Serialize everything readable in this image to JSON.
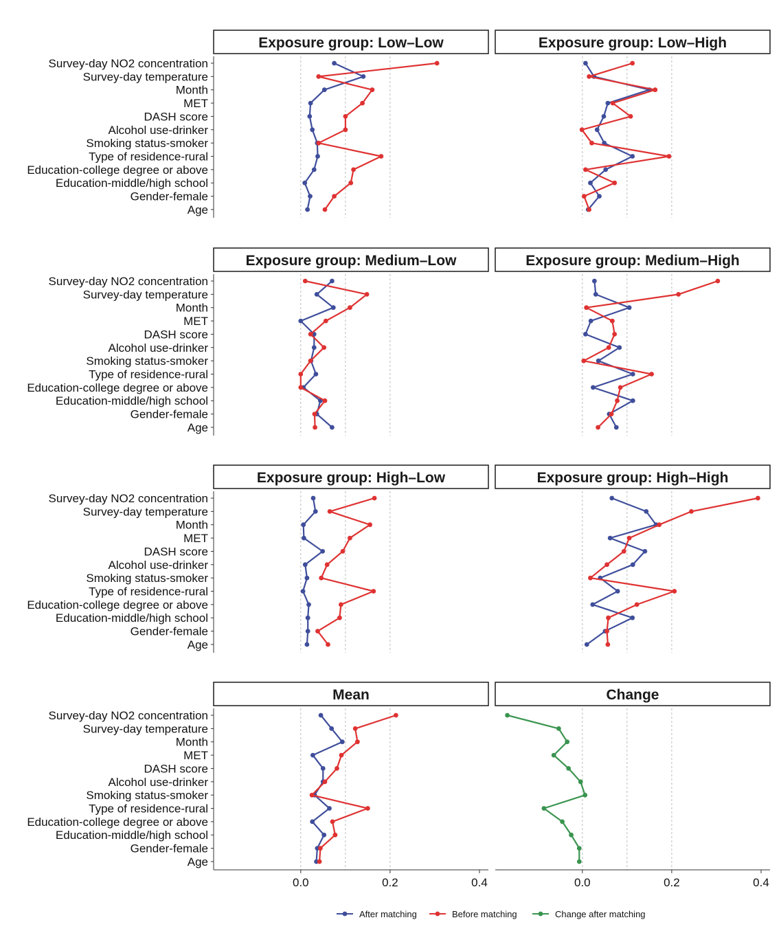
{
  "colors": {
    "after": "#3F4E9B",
    "before": "#DF3232",
    "change": "#3A944F",
    "grid": "#BBBBBB",
    "axis": "#333333"
  },
  "chart_data": {
    "type": "line",
    "orientation": "horizontal",
    "categories": [
      "Survey-day NO2 concentration",
      "Survey-day temperature",
      "Month",
      "MET",
      "DASH score",
      "Alcohol use-drinker",
      "Smoking status-smoker",
      "Type of residence-rural",
      "Education-college degree or above",
      "Education-middle/high school",
      "Gender-female",
      "Age"
    ],
    "x_ticks": [
      0.0,
      0.2,
      0.4
    ],
    "x_tick_labels": [
      "0.0",
      "0.2",
      "0.4"
    ],
    "grid": "vertical dashed at 0, 0.1, 0.2",
    "legend_position": "bottom",
    "legend": [
      {
        "key": "after",
        "label": "After matching"
      },
      {
        "key": "before",
        "label": "Before matching"
      },
      {
        "key": "change",
        "label": "Change after matching"
      }
    ],
    "panels": [
      {
        "title": "Exposure group: Low–Low",
        "xlim": [
          -0.195,
          0.42
        ],
        "series": [
          {
            "key": "after",
            "values": [
              0.075,
              0.14,
              0.053,
              0.022,
              0.02,
              0.026,
              0.037,
              0.038,
              0.03,
              0.009,
              0.021,
              0.015
            ]
          },
          {
            "key": "before",
            "values": [
              0.305,
              0.04,
              0.16,
              0.138,
              0.1,
              0.1,
              0.04,
              0.18,
              0.118,
              0.112,
              0.075,
              0.054
            ]
          }
        ]
      },
      {
        "title": "Exposure group: Low–High",
        "xlim": [
          -0.195,
          0.42
        ],
        "series": [
          {
            "key": "after",
            "values": [
              0.007,
              0.026,
              0.15,
              0.057,
              0.048,
              0.033,
              0.049,
              0.112,
              0.052,
              0.018,
              0.038,
              0.013
            ]
          },
          {
            "key": "before",
            "values": [
              0.112,
              0.015,
              0.163,
              0.068,
              0.108,
              -0.001,
              0.021,
              0.194,
              0.007,
              0.072,
              0.004,
              0.015
            ]
          }
        ]
      },
      {
        "title": "Exposure group: Medium–Low",
        "xlim": [
          -0.195,
          0.42
        ],
        "series": [
          {
            "key": "after",
            "values": [
              0.07,
              0.036,
              0.073,
              0.0,
              0.03,
              0.03,
              0.023,
              0.034,
              0.006,
              0.044,
              0.036,
              0.07
            ]
          },
          {
            "key": "before",
            "values": [
              0.01,
              0.148,
              0.11,
              0.056,
              0.022,
              0.052,
              0.022,
              0.0,
              0.0,
              0.054,
              0.031,
              0.032
            ]
          }
        ]
      },
      {
        "title": "Exposure group: Medium–High",
        "xlim": [
          -0.195,
          0.42
        ],
        "series": [
          {
            "key": "after",
            "values": [
              0.027,
              0.03,
              0.105,
              0.019,
              0.007,
              0.083,
              0.036,
              0.113,
              0.024,
              0.113,
              0.06,
              0.076
            ]
          },
          {
            "key": "before",
            "values": [
              0.303,
              0.215,
              0.009,
              0.067,
              0.072,
              0.059,
              0.003,
              0.155,
              0.085,
              0.078,
              0.065,
              0.035
            ]
          }
        ]
      },
      {
        "title": "Exposure group: High–Low",
        "xlim": [
          -0.195,
          0.42
        ],
        "series": [
          {
            "key": "after",
            "values": [
              0.028,
              0.033,
              0.006,
              0.007,
              0.049,
              0.01,
              0.014,
              0.005,
              0.018,
              0.016,
              0.016,
              0.014
            ]
          },
          {
            "key": "before",
            "values": [
              0.165,
              0.065,
              0.155,
              0.11,
              0.094,
              0.059,
              0.046,
              0.163,
              0.09,
              0.087,
              0.038,
              0.061
            ]
          }
        ]
      },
      {
        "title": "Exposure group: High–High",
        "xlim": [
          -0.195,
          0.42
        ],
        "series": [
          {
            "key": "after",
            "values": [
              0.066,
              0.143,
              0.165,
              0.062,
              0.14,
              0.113,
              0.04,
              0.079,
              0.023,
              0.112,
              0.051,
              0.01
            ]
          },
          {
            "key": "before",
            "values": [
              0.393,
              0.244,
              0.172,
              0.105,
              0.093,
              0.055,
              0.018,
              0.206,
              0.122,
              0.058,
              0.055,
              0.057
            ]
          }
        ]
      },
      {
        "title": "Mean",
        "xlim": [
          -0.195,
          0.42
        ],
        "series": [
          {
            "key": "after",
            "values": [
              0.045,
              0.069,
              0.093,
              0.027,
              0.05,
              0.05,
              0.031,
              0.064,
              0.026,
              0.052,
              0.037,
              0.035
            ]
          },
          {
            "key": "before",
            "values": [
              0.213,
              0.122,
              0.127,
              0.091,
              0.081,
              0.054,
              0.025,
              0.15,
              0.071,
              0.077,
              0.044,
              0.042
            ]
          }
        ]
      },
      {
        "title": "Change",
        "xlim": [
          -0.195,
          0.42
        ],
        "series": [
          {
            "key": "change",
            "values": [
              -0.168,
              -0.053,
              -0.034,
              -0.064,
              -0.031,
              -0.004,
              0.006,
              -0.086,
              -0.045,
              -0.025,
              -0.007,
              -0.007
            ]
          }
        ]
      }
    ]
  }
}
